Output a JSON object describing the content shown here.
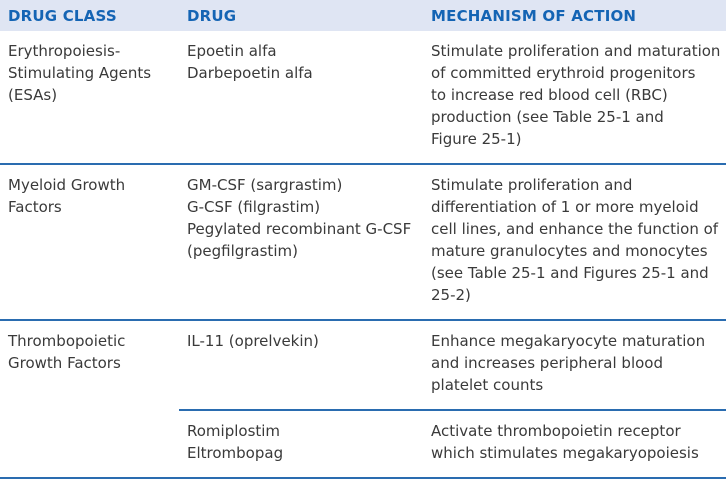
{
  "headers": {
    "drug_class": "DRUG CLASS",
    "drug": "DRUG",
    "mechanism": "MECHANISM OF ACTION"
  },
  "rows": [
    {
      "drug_class": [
        "Erythropoiesis-",
        "Stimulating Agents",
        "(ESAs)"
      ],
      "drug": [
        "Epoetin alfa",
        "Darbepoetin alfa"
      ],
      "mechanism": [
        "Stimulate proliferation and maturation",
        "of committed erythroid progenitors",
        "to increase red blood cell (RBC)",
        "production (see Table 25-1 and",
        "Figure 25-1)"
      ]
    },
    {
      "drug_class": [
        "Myeloid Growth",
        "Factors"
      ],
      "drug": [
        "GM-CSF (sargrastim)",
        "G-CSF (filgrastim)",
        "Pegylated recombinant G-CSF",
        "(pegfilgrastim)"
      ],
      "mechanism": [
        "Stimulate proliferation and",
        "differentiation of 1 or more myeloid",
        "cell lines, and enhance the function of",
        "mature granulocytes and monocytes",
        "(see Table 25-1 and Figures 25-1 and",
        "25-2)"
      ]
    },
    {
      "drug_class": [
        "Thrombopoietic",
        "Growth Factors"
      ],
      "drug": [
        "IL-11 (oprelvekin)"
      ],
      "mechanism": [
        "Enhance megakaryocyte maturation",
        "and increases peripheral blood",
        "platelet counts"
      ]
    },
    {
      "drug_class": [],
      "drug": [
        "Romiplostim",
        "Eltrombopag"
      ],
      "mechanism": [
        "Activate thrombopoietin receptor",
        "which stimulates megakaryopoiesis"
      ]
    }
  ],
  "colors": {
    "header_bg": "#dfe5f3",
    "header_text": "#1464b4",
    "rule": "#2a6cb0"
  }
}
